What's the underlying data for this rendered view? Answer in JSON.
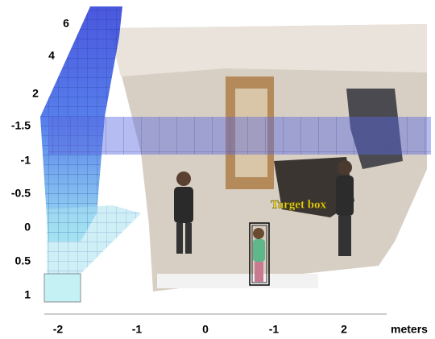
{
  "depth_labels": [
    "6",
    "4",
    "2"
  ],
  "y_labels": [
    "-1.5",
    "-1",
    "-0.5",
    "0",
    "0.5",
    "1"
  ],
  "x_labels": [
    "-2",
    "-1",
    "0",
    "-1",
    "2"
  ],
  "x_unit": "meters",
  "annotation": "Target box"
}
